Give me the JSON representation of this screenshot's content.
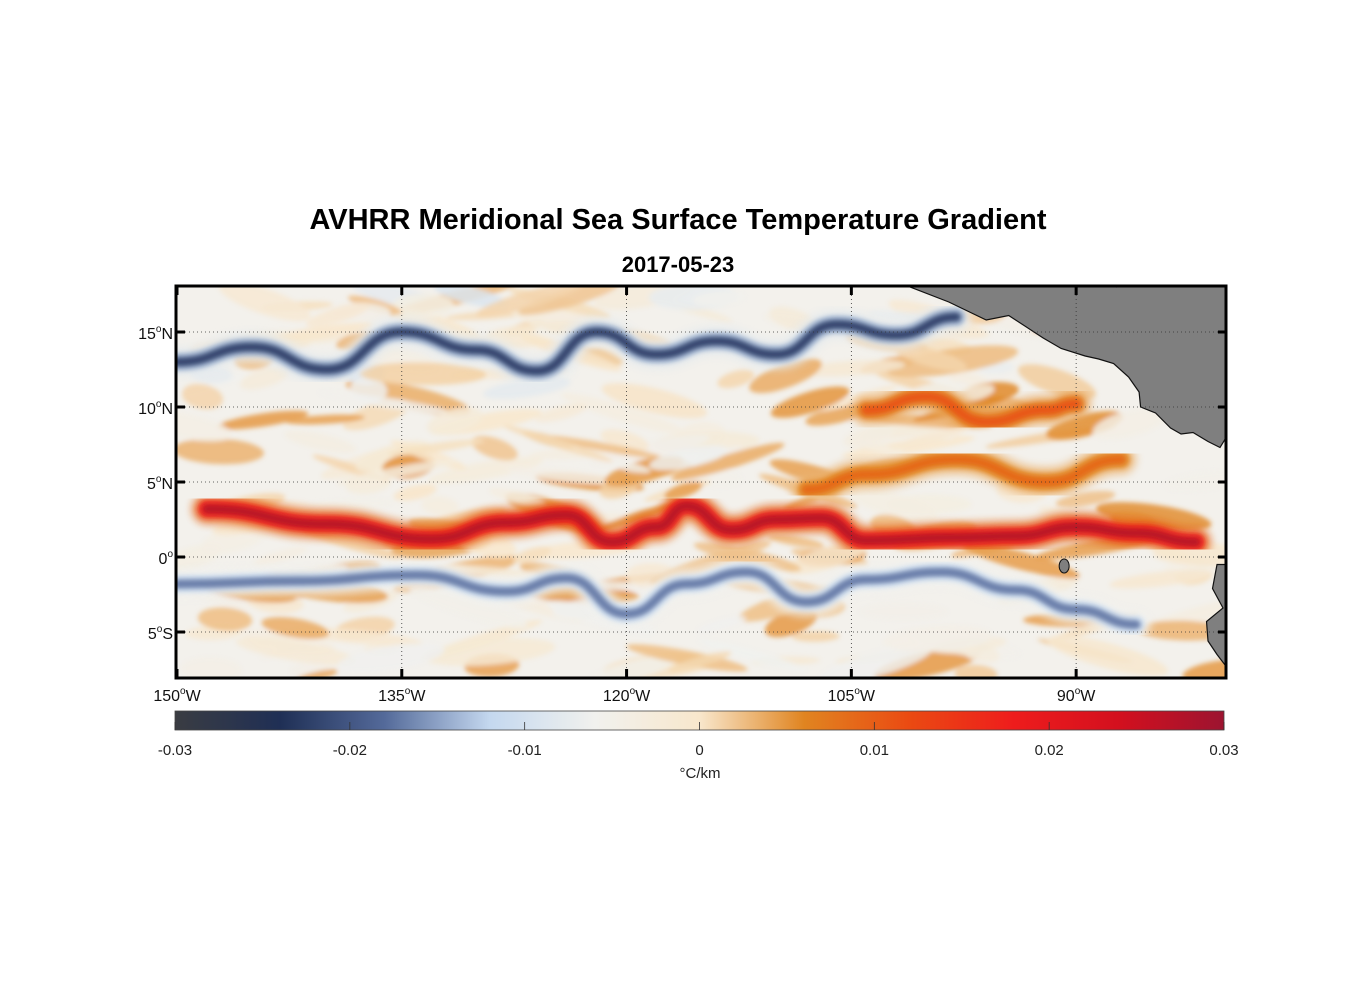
{
  "chart_data": {
    "type": "heatmap",
    "title": "AVHRR Meridional Sea Surface Temperature Gradient",
    "subtitle": "2017-05-23",
    "x_axis": {
      "range_deg_lon": [
        -150,
        -80
      ],
      "ticks": [
        {
          "value": -150,
          "deg": "150",
          "hemi": "W"
        },
        {
          "value": -135,
          "deg": "135",
          "hemi": "W"
        },
        {
          "value": -120,
          "deg": "120",
          "hemi": "W"
        },
        {
          "value": -105,
          "deg": "105",
          "hemi": "W"
        },
        {
          "value": -90,
          "deg": "90",
          "hemi": "W"
        }
      ]
    },
    "y_axis": {
      "range_deg_lat": [
        -8,
        18
      ],
      "ticks": [
        {
          "value": 15,
          "deg": "15",
          "hemi": "N"
        },
        {
          "value": 10,
          "deg": "10",
          "hemi": "N"
        },
        {
          "value": 5,
          "deg": "5",
          "hemi": "N"
        },
        {
          "value": 0,
          "deg": "0",
          "hemi": ""
        },
        {
          "value": -5,
          "deg": "5",
          "hemi": "S"
        }
      ]
    },
    "grid": true,
    "colorbar": {
      "range": [
        -0.03,
        0.03
      ],
      "unit_label": "°C/km",
      "ticks": [
        {
          "value": -0.03,
          "label": "-0.03"
        },
        {
          "value": -0.02,
          "label": "-0.02"
        },
        {
          "value": -0.01,
          "label": "-0.01"
        },
        {
          "value": 0,
          "label": "0"
        },
        {
          "value": 0.01,
          "label": "0.01"
        },
        {
          "value": 0.02,
          "label": "0.02"
        },
        {
          "value": 0.03,
          "label": "0.03"
        }
      ],
      "colors": [
        "#3a3c42",
        "#1f2f55",
        "#546a9a",
        "#c4d8ef",
        "#f1f1ee",
        "#f8e7cc",
        "#e08420",
        "#ea4a12",
        "#ee1c1c",
        "#d3101e",
        "#9c1430"
      ]
    },
    "land_color": "#7f7f7f",
    "features": [
      {
        "name": "equatorial-front",
        "sign": "positive",
        "path": [
          [
            -148,
            3.2
          ],
          [
            -140,
            2.2
          ],
          [
            -133,
            1.2
          ],
          [
            -128,
            2.3
          ],
          [
            -124,
            2.8
          ],
          [
            -121,
            1.0
          ],
          [
            -118,
            2.0
          ],
          [
            -116,
            3.4
          ],
          [
            -113,
            1.8
          ],
          [
            -110,
            2.5
          ],
          [
            -107,
            2.6
          ],
          [
            -104,
            1.1
          ],
          [
            -98,
            1.3
          ],
          [
            -94,
            1.4
          ],
          [
            -90,
            2.0
          ],
          [
            -86,
            1.6
          ],
          [
            -82,
            1.0
          ]
        ],
        "peak_value": 0.027
      },
      {
        "name": "south-negative-band",
        "sign": "negative",
        "path": [
          [
            -150,
            -1.8
          ],
          [
            -142,
            -1.6
          ],
          [
            -134,
            -1.2
          ],
          [
            -128,
            -2.3
          ],
          [
            -124,
            -1.4
          ],
          [
            -120,
            -3.8
          ],
          [
            -116,
            -1.8
          ],
          [
            -112,
            -1.0
          ],
          [
            -108,
            -3.0
          ],
          [
            -104,
            -1.5
          ],
          [
            -99,
            -1.0
          ],
          [
            -94,
            -2.2
          ],
          [
            -90,
            -3.5
          ],
          [
            -86,
            -4.5
          ]
        ],
        "peak_value": -0.017
      },
      {
        "name": "north-negative-band",
        "sign": "negative",
        "path": [
          [
            -150,
            13.0
          ],
          [
            -145,
            14.0
          ],
          [
            -140,
            12.5
          ],
          [
            -135,
            15.0
          ],
          [
            -130,
            13.8
          ],
          [
            -126,
            12.4
          ],
          [
            -122,
            15.0
          ],
          [
            -118,
            13.5
          ],
          [
            -114,
            14.4
          ],
          [
            -110,
            13.5
          ],
          [
            -106,
            15.5
          ],
          [
            -102,
            14.8
          ],
          [
            -98,
            16.0
          ]
        ],
        "peak_value": -0.022
      },
      {
        "name": "north-positive-band",
        "sign": "positive",
        "path": [
          [
            -104,
            9.8
          ],
          [
            -100,
            10.7
          ],
          [
            -96,
            9.0
          ],
          [
            -92,
            9.8
          ],
          [
            -90,
            10.2
          ]
        ],
        "peak_value": 0.011
      },
      {
        "name": "mid-positive-band",
        "sign": "positive",
        "path": [
          [
            -108,
            4.5
          ],
          [
            -104,
            5.5
          ],
          [
            -98,
            6.5
          ],
          [
            -92,
            5.0
          ],
          [
            -87,
            6.5
          ]
        ],
        "peak_value": 0.009
      }
    ]
  }
}
